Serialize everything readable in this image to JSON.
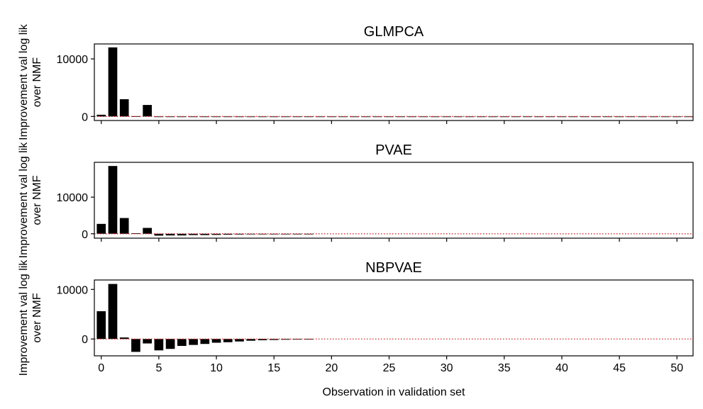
{
  "chart_data": [
    {
      "type": "bar",
      "title": "GLMPCA",
      "ylabel": "Improvement val log lik\nover NMF",
      "xlabel": "",
      "ylim": [
        -700,
        12600
      ],
      "yticks": [
        0,
        10000
      ],
      "xlim": [
        -0.6,
        51.4
      ],
      "xticks": [
        0,
        5,
        10,
        15,
        20,
        25,
        30,
        35,
        40,
        45,
        50
      ],
      "reference_line": {
        "y": 0,
        "color": "#d62728",
        "style": "dotted"
      },
      "x": [
        0,
        1,
        2,
        3,
        4,
        5,
        6,
        7,
        8,
        9,
        10,
        11,
        12,
        13,
        14,
        15,
        16,
        17,
        18,
        19,
        20,
        21,
        22,
        23,
        24,
        25,
        26,
        27,
        28,
        29,
        30,
        31,
        32,
        33,
        34,
        35,
        36,
        37,
        38,
        39,
        40,
        41,
        42,
        43,
        44,
        45,
        46,
        47,
        48,
        49,
        50,
        51
      ],
      "values": [
        300,
        12000,
        3000,
        50,
        2000,
        -100,
        -60,
        -50,
        -40,
        -40,
        -35,
        -30,
        -20,
        -30,
        -20,
        -25,
        -20,
        -15,
        -10,
        -20,
        -15,
        -10,
        -10,
        -10,
        -15,
        -10,
        -10,
        -10,
        -10,
        -10,
        -10,
        -10,
        -10,
        -10,
        -10,
        -10,
        -10,
        -10,
        -10,
        -10,
        -10,
        -10,
        -10,
        -10,
        -10,
        -10,
        -10,
        -10,
        -10,
        -10,
        -10,
        -10
      ]
    },
    {
      "type": "bar",
      "title": "PVAE",
      "ylabel": "Improvement val log lik\nover NMF",
      "xlabel": "",
      "ylim": [
        -1200,
        19500
      ],
      "yticks": [
        0,
        10000
      ],
      "xlim": [
        -0.6,
        51.4
      ],
      "xticks": [
        0,
        5,
        10,
        15,
        20,
        25,
        30,
        35,
        40,
        45,
        50
      ],
      "reference_line": {
        "y": 0,
        "color": "#d62728",
        "style": "dotted"
      },
      "x": [
        0,
        1,
        2,
        3,
        4,
        5,
        6,
        7,
        8,
        9,
        10,
        11,
        12,
        13,
        14,
        15,
        16,
        17,
        18
      ],
      "values": [
        2700,
        18500,
        4300,
        150,
        1600,
        -500,
        -450,
        -450,
        -350,
        -350,
        -300,
        -250,
        -200,
        -150,
        -150,
        -120,
        -100,
        -80,
        -50
      ]
    },
    {
      "type": "bar",
      "title": "NBPVAE",
      "ylabel": "Improvement val log lik\nover NMF",
      "xlabel": "Observation in validation set",
      "ylim": [
        -3400,
        11900
      ],
      "yticks": [
        0,
        10000
      ],
      "xlim": [
        -0.6,
        51.4
      ],
      "xticks": [
        0,
        5,
        10,
        15,
        20,
        25,
        30,
        35,
        40,
        45,
        50
      ],
      "reference_line": {
        "y": 0,
        "color": "#d62728",
        "style": "dotted"
      },
      "x": [
        0,
        1,
        2,
        3,
        4,
        5,
        6,
        7,
        8,
        9,
        10,
        11,
        12,
        13,
        14,
        15,
        16,
        17,
        18
      ],
      "values": [
        5600,
        11100,
        300,
        -2600,
        -900,
        -2300,
        -2000,
        -1400,
        -1200,
        -1000,
        -750,
        -650,
        -500,
        -350,
        -250,
        -200,
        -150,
        -100,
        -50
      ]
    }
  ]
}
